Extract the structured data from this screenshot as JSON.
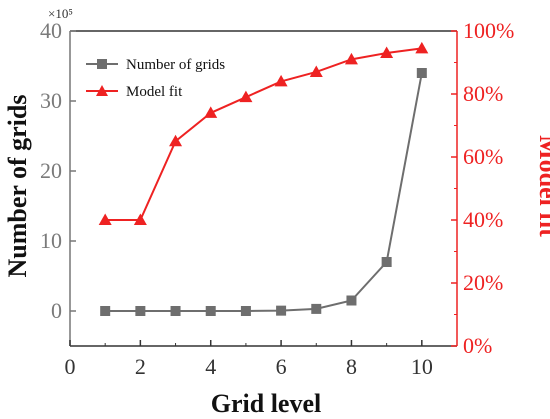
{
  "chart_data": {
    "type": "line",
    "x": [
      1,
      2,
      3,
      4,
      5,
      6,
      7,
      8,
      9,
      10
    ],
    "xlabel": "Grid level",
    "xlim": [
      0,
      11
    ],
    "xticks": [
      "0",
      "2",
      "4",
      "6",
      "8",
      "10"
    ],
    "left_axis": {
      "label": "Number of grids",
      "multiplier_label": "×10⁵",
      "ylim": [
        -5,
        40
      ],
      "ticks": [
        "0",
        "10",
        "20",
        "30",
        "40"
      ],
      "color": "#7a7a7a"
    },
    "right_axis": {
      "label": "Model fit",
      "ylim": [
        0,
        100
      ],
      "ticks": [
        "0%",
        "20%",
        "40%",
        "60%",
        "80%",
        "100%"
      ],
      "color": "#ee2222"
    },
    "series": [
      {
        "name": "Number of grids",
        "axis": "left",
        "marker": "square",
        "color": "#6e6e6e",
        "values": [
          0.0,
          0.0,
          0.0,
          0.0,
          0.0,
          0.05,
          0.3,
          1.5,
          7.0,
          34.0
        ]
      },
      {
        "name": "Model fit",
        "axis": "right",
        "marker": "triangle",
        "color": "#ee2222",
        "values": [
          40,
          40,
          65,
          74,
          79,
          84,
          87,
          91,
          93,
          94.5
        ]
      }
    ],
    "legend": {
      "placement": "top-left"
    },
    "grid": false
  }
}
